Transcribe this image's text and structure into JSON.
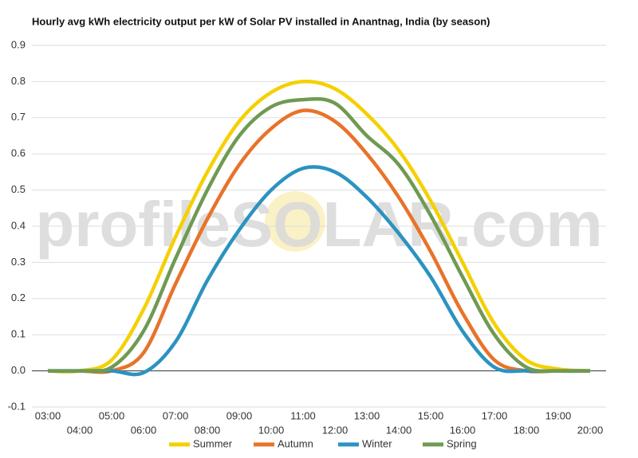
{
  "chart_data": {
    "type": "line",
    "title": "Hourly avg kWh electricity output per kW of Solar PV installed in Anantnag, India (by season)",
    "watermark": "profileSOLAR.com",
    "categories": [
      "03:00",
      "04:00",
      "05:00",
      "06:00",
      "07:00",
      "08:00",
      "09:00",
      "10:00",
      "11:00",
      "12:00",
      "13:00",
      "14:00",
      "15:00",
      "16:00",
      "17:00",
      "18:00",
      "19:00",
      "20:00"
    ],
    "series": [
      {
        "name": "Summer",
        "color": "#f5d000",
        "values": [
          0,
          0,
          0.03,
          0.17,
          0.37,
          0.55,
          0.69,
          0.77,
          0.8,
          0.78,
          0.71,
          0.61,
          0.47,
          0.3,
          0.13,
          0.03,
          0.005,
          0
        ]
      },
      {
        "name": "Autumn",
        "color": "#e8732a",
        "values": [
          0,
          0,
          0,
          0.05,
          0.24,
          0.42,
          0.57,
          0.67,
          0.72,
          0.69,
          0.6,
          0.48,
          0.33,
          0.16,
          0.03,
          0,
          0,
          0
        ]
      },
      {
        "name": "Winter",
        "color": "#2b93c0",
        "values": [
          0,
          0,
          0,
          -0.005,
          0.08,
          0.25,
          0.39,
          0.5,
          0.56,
          0.55,
          0.48,
          0.38,
          0.26,
          0.11,
          0.01,
          0,
          0,
          0
        ]
      },
      {
        "name": "Spring",
        "color": "#6f9a52",
        "values": [
          0,
          0,
          0.01,
          0.11,
          0.31,
          0.5,
          0.65,
          0.73,
          0.75,
          0.74,
          0.65,
          0.57,
          0.43,
          0.26,
          0.1,
          0.01,
          0,
          0
        ]
      }
    ],
    "ylim": [
      -0.1,
      0.9
    ],
    "yticks": [
      {
        "value": -0.1,
        "label": "-0.1"
      },
      {
        "value": 0,
        "label": "0.0"
      },
      0.1,
      0.2,
      0.3,
      0.4,
      0.5,
      0.6,
      0.7,
      0.8,
      0.9
    ],
    "grid": true,
    "legend": "bottom"
  }
}
